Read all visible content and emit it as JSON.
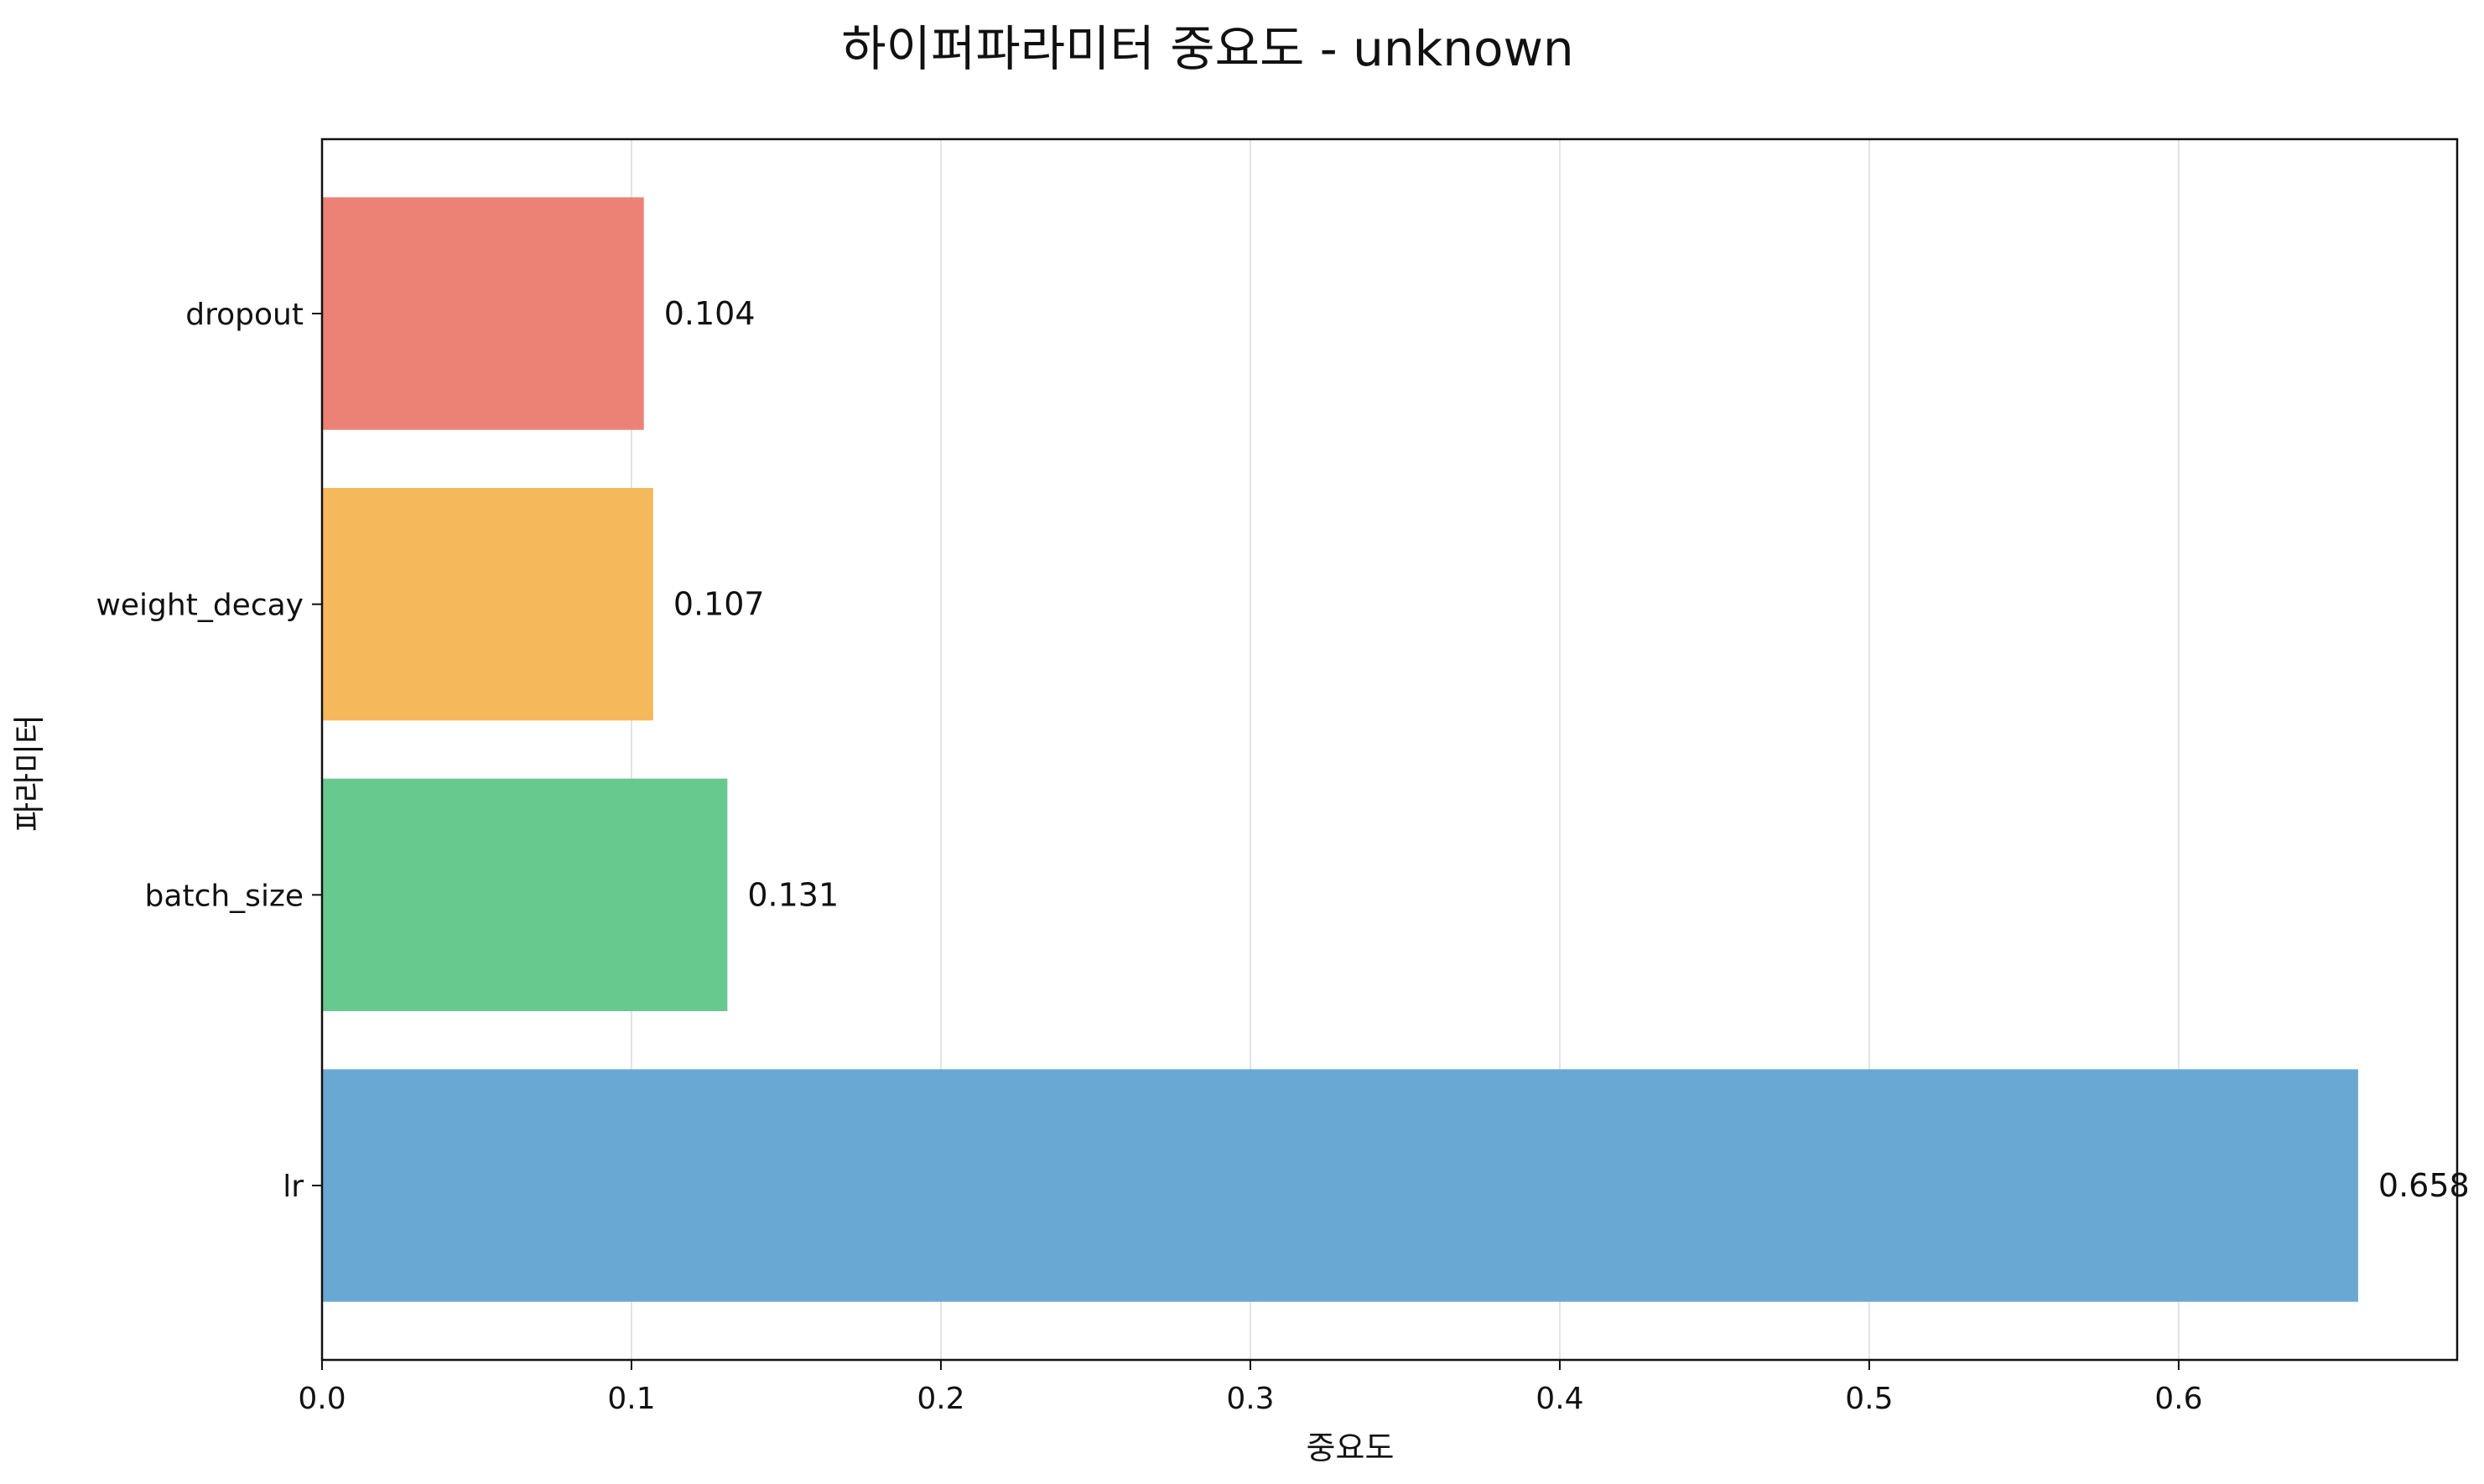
{
  "chart_data": {
    "type": "bar",
    "orientation": "horizontal",
    "title": "하이퍼파라미터 중요도 - unknown",
    "xlabel": "중요도",
    "ylabel": "파라미터",
    "categories": [
      "lr",
      "batch_size",
      "weight_decay",
      "dropout"
    ],
    "values": [
      0.658,
      0.131,
      0.107,
      0.104
    ],
    "value_labels": [
      "0.658",
      "0.131",
      "0.107",
      "0.104"
    ],
    "colors": [
      "#6aa8d4",
      "#68c98f",
      "#f5b85a",
      "#ec8175"
    ],
    "xlim": [
      0,
      0.69
    ],
    "xticks": [
      0.0,
      0.1,
      0.2,
      0.3,
      0.4,
      0.5,
      0.6
    ],
    "xtick_labels": [
      "0.0",
      "0.1",
      "0.2",
      "0.3",
      "0.4",
      "0.5",
      "0.6"
    ],
    "grid": "vertical",
    "grid_color": "#e3e3e3"
  }
}
